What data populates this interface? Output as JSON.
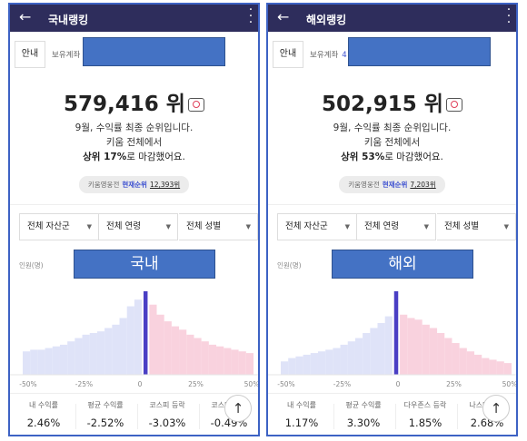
{
  "panels": [
    {
      "header": {
        "title": "국내랭킹"
      },
      "guide": "안내",
      "account_label": "보유계좌",
      "rank": "579,416 위",
      "lines": [
        "9월, 수익률 최종 순위입니다.",
        "키움 전체에서"
      ],
      "summary": {
        "strong": "상위 17%",
        "rest": "로 마감했어요."
      },
      "badge": {
        "prefix": "키움영웅전",
        "label": "현재순위",
        "value": "12,393위"
      },
      "filters": [
        "전체 자산군",
        "전체 연령",
        "전체 성별"
      ],
      "count_label": "인원(명)",
      "overlay_label": "국내",
      "histogram": {
        "values": [
          28,
          30,
          30,
          32,
          34,
          36,
          40,
          44,
          48,
          50,
          52,
          56,
          60,
          68,
          82,
          90,
          100,
          84,
          72,
          64,
          58,
          54,
          48,
          44,
          40,
          36,
          34,
          32,
          30,
          28,
          26
        ],
        "highlight_index": 16,
        "ylim": [
          0,
          100
        ],
        "colors": {
          "below": "#dfe3f8",
          "highlight": "#4a3fc4",
          "above": "#f9d2de"
        }
      },
      "x_ticks": [
        "-50%",
        "-25%",
        "0",
        "25%",
        "50%"
      ],
      "stats": [
        {
          "label": "내 수익률",
          "value": "2.46%"
        },
        {
          "label": "평균 수익률",
          "value": "-2.52%"
        },
        {
          "label": "코스피 등락",
          "value": "-3.03%"
        },
        {
          "label": "코스닥 등락",
          "value": "-0.49%"
        }
      ]
    },
    {
      "header": {
        "title": "해외랭킹"
      },
      "guide": "안내",
      "account_label": "보유계좌",
      "account_count": "4",
      "rank": "502,915 위",
      "lines": [
        "9월, 수익률 최종 순위입니다.",
        "키움 전체에서"
      ],
      "summary": {
        "strong": "상위 53%",
        "rest": "로 마감했어요."
      },
      "badge": {
        "prefix": "키움영웅전",
        "label": "현재순위",
        "value": "7,203위"
      },
      "filters": [
        "전체 자산군",
        "전체 연령",
        "전체 성별"
      ],
      "count_label": "인원(명)",
      "overlay_label": "해외",
      "histogram": {
        "values": [
          16,
          20,
          22,
          24,
          26,
          28,
          30,
          32,
          36,
          40,
          44,
          50,
          56,
          62,
          70,
          100,
          72,
          68,
          66,
          60,
          56,
          50,
          44,
          38,
          32,
          28,
          24,
          20,
          18,
          16,
          14
        ],
        "highlight_index": 15,
        "ylim": [
          0,
          100
        ],
        "colors": {
          "below": "#dfe3f8",
          "highlight": "#4a3fc4",
          "above": "#f9d2de"
        }
      },
      "x_ticks": [
        "-50%",
        "-25%",
        "0",
        "25%",
        "50%"
      ],
      "stats": [
        {
          "label": "내 수익률",
          "value": "1.17%"
        },
        {
          "label": "평균 수익률",
          "value": "3.30%"
        },
        {
          "label": "다우존스 등락",
          "value": "1.85%"
        },
        {
          "label": "나스닥 등락",
          "value": "2.68%"
        }
      ]
    }
  ]
}
